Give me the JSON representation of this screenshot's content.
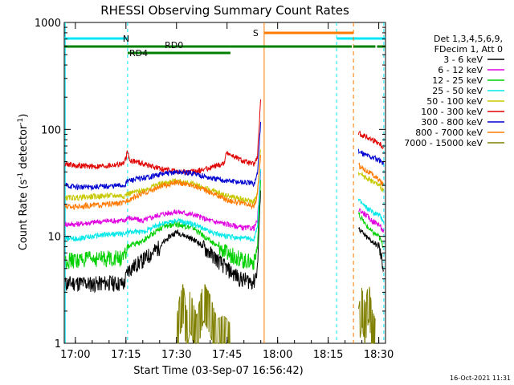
{
  "chart_data": {
    "type": "line",
    "title": "RHESSI Observing Summary Count Rates",
    "xlabel": "Start Time (03-Sep-07 16:56:42)",
    "ylabel_main": "Count Rate (s",
    "ylabel_sup1": "-1",
    "ylabel_mid": " detector",
    "ylabel_sup2": "-1",
    "ylabel_end": ")",
    "yscale": "log",
    "xlim_min": [
      -3.3,
      92
    ],
    "ylim": [
      1,
      1000
    ],
    "x_ticks": [
      {
        "t": 0,
        "label": "17:00"
      },
      {
        "t": 15,
        "label": "17:15"
      },
      {
        "t": 30,
        "label": "17:30"
      },
      {
        "t": 45,
        "label": "17:45"
      },
      {
        "t": 60,
        "label": "18:00"
      },
      {
        "t": 75,
        "label": "18:15"
      },
      {
        "t": 90,
        "label": "18:30"
      }
    ],
    "y_ticks": [
      {
        "v": 1,
        "label": "1"
      },
      {
        "v": 10,
        "label": "10"
      },
      {
        "v": 100,
        "label": "100"
      },
      {
        "v": 1000,
        "label": "1000"
      }
    ],
    "legend_header": [
      "Det 1,3,4,5,6,9,",
      "FDecim 1, Att 0"
    ],
    "series": [
      {
        "name": "3 - 6 keV",
        "color": "#000000",
        "seg1": [
          [
            -3,
            3.6
          ],
          [
            0,
            3.7
          ],
          [
            5,
            3.6
          ],
          [
            10,
            3.7
          ],
          [
            14.5,
            3.6
          ],
          [
            15.5,
            4.8
          ],
          [
            20,
            6
          ],
          [
            25,
            8
          ],
          [
            28,
            10
          ],
          [
            30,
            11
          ],
          [
            33,
            10
          ],
          [
            36,
            9
          ],
          [
            40,
            7
          ],
          [
            45,
            5
          ],
          [
            49,
            4
          ],
          [
            53,
            3.8
          ],
          [
            54,
            5
          ],
          [
            55,
            30
          ]
        ],
        "seg2": [
          [
            84,
            12
          ],
          [
            86,
            10
          ],
          [
            88,
            9
          ],
          [
            90,
            8
          ],
          [
            91.5,
            5
          ]
        ]
      },
      {
        "name": "6 - 12 keV",
        "color": "#e000e0",
        "seg1": [
          [
            -3,
            13
          ],
          [
            0,
            13
          ],
          [
            5,
            13.5
          ],
          [
            10,
            14
          ],
          [
            14.5,
            14
          ],
          [
            15.5,
            15
          ],
          [
            20,
            14
          ],
          [
            25,
            16
          ],
          [
            30,
            17
          ],
          [
            35,
            16
          ],
          [
            40,
            14
          ],
          [
            45,
            13
          ],
          [
            50,
            12
          ],
          [
            53,
            12
          ],
          [
            54,
            14
          ],
          [
            55,
            40
          ]
        ],
        "seg2": [
          [
            84,
            18
          ],
          [
            86,
            16
          ],
          [
            88,
            14
          ],
          [
            90,
            13
          ],
          [
            91.5,
            11
          ]
        ]
      },
      {
        "name": "12 - 25 keV",
        "color": "#00d000",
        "seg1": [
          [
            -3,
            6
          ],
          [
            0,
            6
          ],
          [
            5,
            6.2
          ],
          [
            10,
            6.3
          ],
          [
            14.5,
            6.3
          ],
          [
            15.5,
            8
          ],
          [
            20,
            9
          ],
          [
            25,
            12
          ],
          [
            30,
            13
          ],
          [
            35,
            12
          ],
          [
            40,
            9
          ],
          [
            45,
            7
          ],
          [
            50,
            6
          ],
          [
            53,
            5.8
          ],
          [
            54,
            8
          ],
          [
            55,
            35
          ]
        ],
        "seg2": [
          [
            84,
            16
          ],
          [
            86,
            13
          ],
          [
            88,
            11
          ],
          [
            90,
            10
          ],
          [
            91.5,
            8
          ]
        ]
      },
      {
        "name": "25 - 50 keV",
        "color": "#00e8e8",
        "seg1": [
          [
            -3,
            9.5
          ],
          [
            0,
            9.5
          ],
          [
            5,
            10
          ],
          [
            10,
            10.5
          ],
          [
            14.5,
            10.5
          ],
          [
            15.5,
            11
          ],
          [
            20,
            11
          ],
          [
            25,
            13
          ],
          [
            30,
            14
          ],
          [
            35,
            13
          ],
          [
            40,
            11
          ],
          [
            45,
            10
          ],
          [
            50,
            9.5
          ],
          [
            53,
            9.5
          ],
          [
            54,
            12
          ],
          [
            55,
            45
          ]
        ],
        "seg2": [
          [
            84,
            22
          ],
          [
            86,
            19
          ],
          [
            88,
            17
          ],
          [
            90,
            16
          ],
          [
            91.5,
            14
          ]
        ]
      },
      {
        "name": "50 - 100 keV",
        "color": "#c8c800",
        "seg1": [
          [
            -3,
            23
          ],
          [
            0,
            23
          ],
          [
            5,
            23.5
          ],
          [
            10,
            24
          ],
          [
            14.5,
            24
          ],
          [
            15.5,
            25
          ],
          [
            20,
            27
          ],
          [
            25,
            31
          ],
          [
            30,
            33
          ],
          [
            35,
            31
          ],
          [
            40,
            27
          ],
          [
            45,
            24
          ],
          [
            50,
            22
          ],
          [
            53,
            21
          ],
          [
            54,
            25
          ],
          [
            55,
            70
          ]
        ],
        "seg2": [
          [
            84,
            40
          ],
          [
            86,
            36
          ],
          [
            88,
            33
          ],
          [
            90,
            30
          ],
          [
            91.5,
            27
          ]
        ]
      },
      {
        "name": "100 - 300 keV",
        "color": "#e00000",
        "seg1": [
          [
            -3,
            48
          ],
          [
            0,
            46
          ],
          [
            5,
            45
          ],
          [
            10,
            46
          ],
          [
            14.5,
            48
          ],
          [
            15.5,
            62
          ],
          [
            16,
            52
          ],
          [
            20,
            48
          ],
          [
            25,
            43
          ],
          [
            30,
            40
          ],
          [
            35,
            40
          ],
          [
            40,
            44
          ],
          [
            44,
            48
          ],
          [
            45,
            62
          ],
          [
            46,
            58
          ],
          [
            50,
            50
          ],
          [
            53,
            47
          ],
          [
            54,
            55
          ],
          [
            55,
            190
          ]
        ],
        "seg2": [
          [
            84,
            92
          ],
          [
            86,
            86
          ],
          [
            88,
            80
          ],
          [
            90,
            75
          ],
          [
            91.5,
            68
          ]
        ]
      },
      {
        "name": "300 - 800 keV",
        "color": "#0000d0",
        "seg1": [
          [
            -3,
            30
          ],
          [
            0,
            29
          ],
          [
            5,
            29
          ],
          [
            10,
            29.5
          ],
          [
            14.5,
            30
          ],
          [
            15.5,
            33
          ],
          [
            20,
            35
          ],
          [
            25,
            38
          ],
          [
            30,
            40
          ],
          [
            35,
            39
          ],
          [
            40,
            35
          ],
          [
            45,
            33
          ],
          [
            50,
            32
          ],
          [
            53,
            31
          ],
          [
            54,
            38
          ],
          [
            55,
            120
          ]
        ],
        "seg2": [
          [
            84,
            62
          ],
          [
            86,
            58
          ],
          [
            88,
            55
          ],
          [
            90,
            52
          ],
          [
            91.5,
            48
          ]
        ]
      },
      {
        "name": "800 - 7000 keV",
        "color": "#ff7a00",
        "seg1": [
          [
            -3,
            19
          ],
          [
            0,
            19
          ],
          [
            5,
            19.5
          ],
          [
            10,
            20
          ],
          [
            14.5,
            20.5
          ],
          [
            15.5,
            22
          ],
          [
            20,
            25
          ],
          [
            25,
            29
          ],
          [
            30,
            32
          ],
          [
            35,
            30
          ],
          [
            40,
            26
          ],
          [
            45,
            22
          ],
          [
            50,
            20
          ],
          [
            53,
            19
          ],
          [
            54,
            24
          ],
          [
            55,
            60
          ]
        ],
        "seg2": [
          [
            84,
            46
          ],
          [
            86,
            42
          ],
          [
            88,
            38
          ],
          [
            90,
            34
          ],
          [
            91.5,
            30
          ]
        ]
      },
      {
        "name": "7000 - 15000 keV",
        "color": "#808000",
        "seg1": [
          [
            30,
            1.2
          ],
          [
            31,
            2
          ],
          [
            32,
            2.6
          ],
          [
            33,
            1.4
          ],
          [
            34,
            2.2
          ],
          [
            36,
            1.3
          ],
          [
            38,
            2.7
          ],
          [
            40,
            2
          ],
          [
            42,
            1.2
          ],
          [
            44,
            1.3
          ],
          [
            46,
            1.1
          ]
        ],
        "seg2": [
          [
            84,
            1.5
          ],
          [
            85,
            2.4
          ],
          [
            86,
            1.6
          ],
          [
            87,
            2.8
          ],
          [
            88,
            1.5
          ],
          [
            89,
            1.2
          ]
        ]
      }
    ],
    "states": {
      "night_label": "N",
      "saa_label": "S",
      "rd0_label": "RD0",
      "rd4_label": "RD4",
      "night_bars": [
        [
          -3.3,
          15.5
        ],
        [
          77.5,
          92
        ]
      ],
      "night_lines": [
        -3,
        15.5,
        77.5,
        91.5
      ],
      "saa_bar": [
        56,
        82.5
      ],
      "saa_lines": [
        56,
        82.5
      ],
      "decim_bars": [
        [
          -3.3,
          46
        ],
        [
          46,
          82
        ],
        [
          82.5,
          89
        ],
        [
          89.5,
          92
        ]
      ],
      "decim_low_bar": [
        15.5,
        46
      ],
      "gaps": [
        [
          55.5,
          77.5
        ]
      ]
    },
    "footer_timestamp": "16-Oct-2021 11:31"
  }
}
